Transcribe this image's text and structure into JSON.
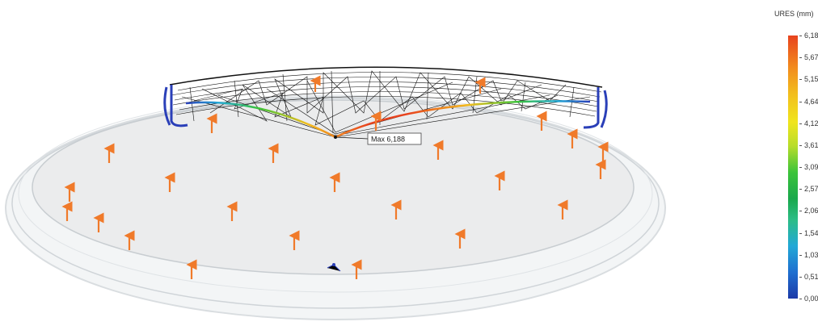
{
  "legend": {
    "title": "URES (mm)",
    "ticks": [
      "6,188",
      "5,672",
      "5,157",
      "4,641",
      "4,125",
      "3,610",
      "3,094",
      "2,578",
      "2,063",
      "1,547",
      "1,031",
      "0,516",
      "0,000"
    ],
    "colors": {
      "max": "#e8431e",
      "upper": "#f2bd1e",
      "mid": "#3cc43a",
      "lower": "#22a8d6",
      "min": "#1c3aa8"
    }
  },
  "annotation": {
    "max_label": "Max 6,188"
  },
  "colors": {
    "arrow": "#f07a2a",
    "mesh": "#111111",
    "fixture": "#2a3fb8",
    "ring": "#d9dde0"
  }
}
